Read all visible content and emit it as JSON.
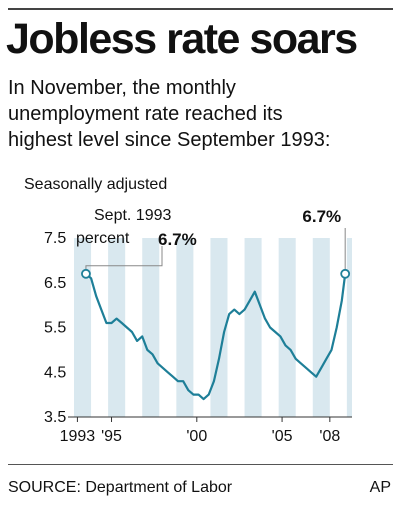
{
  "header": {
    "title": "Jobless rate soars",
    "subtitle_lines": [
      "In November, the monthly",
      "unemployment rate reached its",
      "highest level since September 1993:"
    ],
    "note": "Seasonally adjusted"
  },
  "chart_data": {
    "type": "line",
    "unit_label": "percent",
    "ylim": [
      3.5,
      7.5
    ],
    "xlim": [
      1993.0,
      2009.3
    ],
    "y_ticks": [
      {
        "value": 7.5,
        "label": "7.5"
      },
      {
        "value": 6.5,
        "label": "6.5"
      },
      {
        "value": 5.5,
        "label": "5.5"
      },
      {
        "value": 4.5,
        "label": "4.5"
      },
      {
        "value": 3.5,
        "label": "3.5"
      }
    ],
    "x_ticks": [
      {
        "value": 1993.2,
        "label": "1993"
      },
      {
        "value": 1995.2,
        "label": "'95"
      },
      {
        "value": 2000.2,
        "label": "'00"
      },
      {
        "value": 2005.2,
        "label": "'05"
      },
      {
        "value": 2008.0,
        "label": "'08"
      }
    ],
    "annotations": [
      {
        "label": "Sept. 1993",
        "value_label": "6.7%",
        "x": 1993.7,
        "y": 6.7
      },
      {
        "label": "",
        "value_label": "6.7%",
        "x": 2008.9,
        "y": 6.7
      }
    ],
    "colors": {
      "line": "#1e7f98",
      "band": "#d9e8ef",
      "marker_fill": "#ffffff"
    },
    "x": [
      1993.7,
      1994.0,
      1994.3,
      1994.6,
      1994.9,
      1995.2,
      1995.5,
      1995.8,
      1996.1,
      1996.4,
      1996.7,
      1997.0,
      1997.3,
      1997.6,
      1997.9,
      1998.2,
      1998.5,
      1998.8,
      1999.1,
      1999.4,
      1999.7,
      2000.0,
      2000.3,
      2000.6,
      2000.9,
      2001.2,
      2001.5,
      2001.8,
      2002.1,
      2002.4,
      2002.7,
      2003.0,
      2003.3,
      2003.6,
      2003.9,
      2004.2,
      2004.5,
      2004.8,
      2005.1,
      2005.4,
      2005.7,
      2006.0,
      2006.3,
      2006.6,
      2006.9,
      2007.2,
      2007.5,
      2007.8,
      2008.1,
      2008.4,
      2008.7,
      2008.9
    ],
    "values": [
      6.7,
      6.6,
      6.2,
      5.9,
      5.6,
      5.6,
      5.7,
      5.6,
      5.5,
      5.4,
      5.2,
      5.3,
      5.0,
      4.9,
      4.7,
      4.6,
      4.5,
      4.4,
      4.3,
      4.3,
      4.1,
      4.0,
      4.0,
      3.9,
      4.0,
      4.3,
      4.8,
      5.4,
      5.8,
      5.9,
      5.8,
      5.9,
      6.1,
      6.3,
      6.0,
      5.7,
      5.5,
      5.4,
      5.3,
      5.1,
      5.0,
      4.8,
      4.7,
      4.6,
      4.5,
      4.4,
      4.6,
      4.8,
      5.0,
      5.5,
      6.1,
      6.7
    ]
  },
  "footer": {
    "source": "SOURCE: Department of Labor",
    "credit": "AP"
  }
}
